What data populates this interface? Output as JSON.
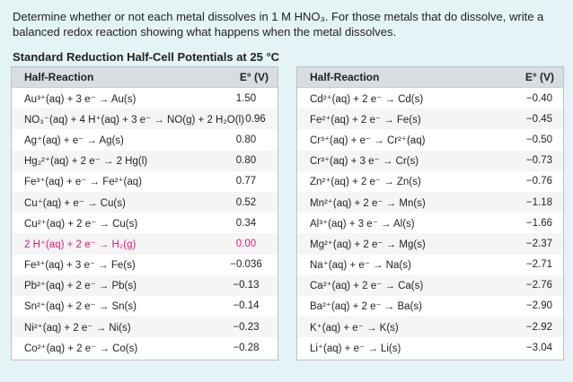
{
  "question": "Determine whether or not each metal dissolves in 1 M HNO₃. For those metals that do dissolve, write a balanced redox reaction showing what happens when the metal dissolves.",
  "table_title": "Standard Reduction Half-Cell Potentials at 25 °C",
  "headers": {
    "reaction": "Half-Reaction",
    "potential": "E° (V)"
  },
  "left_rows": [
    {
      "reaction": "Au³⁺(aq) + 3 e⁻ → Au(s)",
      "potential": "1.50"
    },
    {
      "reaction": "NO₃⁻(aq) + 4 H⁺(aq) + 3 e⁻ → NO(g) + 2 H₂O(l)",
      "potential": "0.96"
    },
    {
      "reaction": "Ag⁺(aq) + e⁻ → Ag(s)",
      "potential": "0.80"
    },
    {
      "reaction": "Hg₂²⁺(aq) + 2 e⁻ → 2 Hg(l)",
      "potential": "0.80"
    },
    {
      "reaction": "Fe³⁺(aq) + e⁻ → Fe²⁺(aq)",
      "potential": "0.77"
    },
    {
      "reaction": "Cu⁺(aq) + e⁻ → Cu(s)",
      "potential": "0.52"
    },
    {
      "reaction": "Cu²⁺(aq) + 2 e⁻ → Cu(s)",
      "potential": "0.34"
    },
    {
      "reaction": "2 H⁺(aq) + 2 e⁻ → H₂(g)",
      "potential": "0.00",
      "highlight": true
    },
    {
      "reaction": "Fe³⁺(aq) + 3 e⁻ → Fe(s)",
      "potential": "−0.036"
    },
    {
      "reaction": "Pb²⁺(aq) + 2 e⁻ → Pb(s)",
      "potential": "−0.13"
    },
    {
      "reaction": "Sn²⁺(aq) + 2 e⁻ → Sn(s)",
      "potential": "−0.14"
    },
    {
      "reaction": "Ni²⁺(aq) + 2 e⁻ → Ni(s)",
      "potential": "−0.23"
    },
    {
      "reaction": "Co²⁺(aq) + 2 e⁻ → Co(s)",
      "potential": "−0.28"
    }
  ],
  "right_rows": [
    {
      "reaction": "Cd²⁺(aq) + 2 e⁻ → Cd(s)",
      "potential": "−0.40"
    },
    {
      "reaction": "Fe²⁺(aq) + 2 e⁻ → Fe(s)",
      "potential": "−0.45"
    },
    {
      "reaction": "Cr³⁺(aq) + e⁻ → Cr²⁺(aq)",
      "potential": "−0.50"
    },
    {
      "reaction": "Cr³⁺(aq) + 3 e⁻ → Cr(s)",
      "potential": "−0.73"
    },
    {
      "reaction": "Zn²⁺(aq) + 2 e⁻ → Zn(s)",
      "potential": "−0.76"
    },
    {
      "reaction": "Mn²⁺(aq) + 2 e⁻ → Mn(s)",
      "potential": "−1.18"
    },
    {
      "reaction": "Al³⁺(aq) + 3 e⁻ → Al(s)",
      "potential": "−1.66"
    },
    {
      "reaction": "Mg²⁺(aq) + 2 e⁻ → Mg(s)",
      "potential": "−2.37"
    },
    {
      "reaction": "Na⁺(aq) + e⁻ → Na(s)",
      "potential": "−2.71"
    },
    {
      "reaction": "Ca²⁺(aq) + 2 e⁻ → Ca(s)",
      "potential": "−2.76"
    },
    {
      "reaction": "Ba²⁺(aq) + 2 e⁻ → Ba(s)",
      "potential": "−2.90"
    },
    {
      "reaction": "K⁺(aq) + e⁻ → K(s)",
      "potential": "−2.92"
    },
    {
      "reaction": "Li⁺(aq) + e⁻ → Li(s)",
      "potential": "−3.04"
    }
  ]
}
